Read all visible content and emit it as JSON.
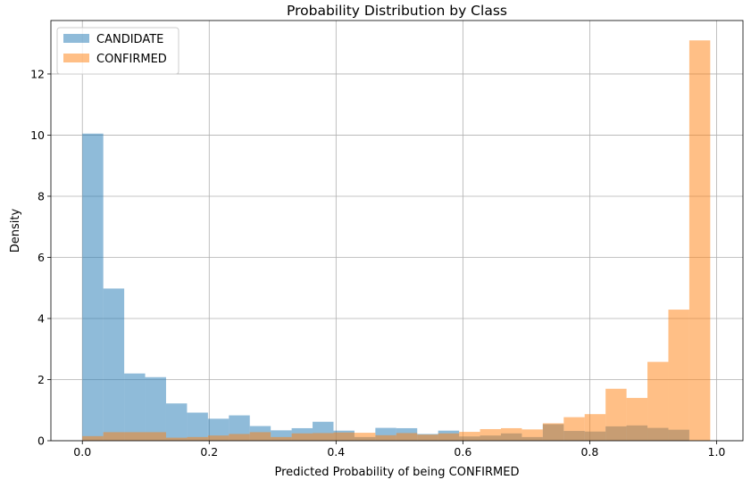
{
  "chart_data": {
    "type": "bar",
    "title": "Probability Distribution by Class",
    "xlabel": "Predicted Probability of being CONFIRMED",
    "ylabel": "Density",
    "xlim": [
      -0.0496,
      1.0416
    ],
    "ylim": [
      0,
      13.75
    ],
    "xticks": [
      0.0,
      0.2,
      0.4,
      0.6,
      0.8,
      1.0
    ],
    "xtick_labels": [
      "0.0",
      "0.2",
      "0.4",
      "0.6",
      "0.8",
      "1.0"
    ],
    "yticks": [
      0,
      2,
      4,
      6,
      8,
      10,
      12
    ],
    "ytick_labels": [
      "0",
      "2",
      "4",
      "6",
      "8",
      "10",
      "12"
    ],
    "grid": true,
    "legend_position": "top-left",
    "bin_start": 0.0,
    "bin_width": 0.033,
    "series": [
      {
        "name": "CANDIDATE",
        "color": "#1f77b4",
        "opacity": 0.5,
        "values": [
          10.05,
          4.98,
          2.2,
          2.08,
          1.22,
          0.92,
          0.72,
          0.83,
          0.48,
          0.34,
          0.41,
          0.62,
          0.33,
          0.12,
          0.42,
          0.41,
          0.22,
          0.33,
          0.14,
          0.17,
          0.24,
          0.12,
          0.54,
          0.32,
          0.3,
          0.47,
          0.5,
          0.42,
          0.36
        ]
      },
      {
        "name": "CONFIRMED",
        "color": "#ff7f0e",
        "opacity": 0.5,
        "values": [
          0.15,
          0.28,
          0.28,
          0.28,
          0.1,
          0.12,
          0.17,
          0.22,
          0.28,
          0.12,
          0.24,
          0.25,
          0.27,
          0.26,
          0.18,
          0.25,
          0.2,
          0.24,
          0.29,
          0.38,
          0.41,
          0.37,
          0.57,
          0.77,
          0.87,
          1.7,
          1.4,
          2.58,
          4.29
        ]
      }
    ],
    "last_bin_confirmed": 13.1
  }
}
